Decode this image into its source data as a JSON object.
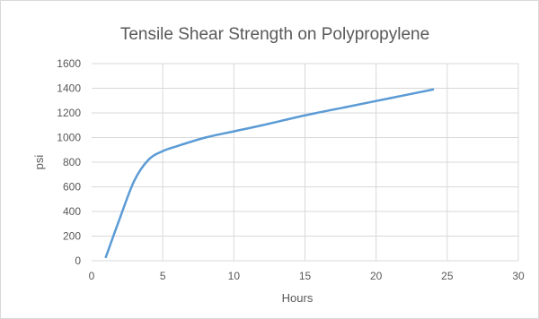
{
  "chart_data": {
    "type": "line",
    "title": "Tensile Shear Strength on Polypropylene",
    "xlabel": "Hours",
    "ylabel": "psi",
    "xlim": [
      0,
      30
    ],
    "ylim": [
      0,
      1600
    ],
    "xticks": [
      0,
      5,
      10,
      15,
      20,
      25,
      30
    ],
    "yticks": [
      0,
      200,
      400,
      600,
      800,
      1000,
      1200,
      1400,
      1600
    ],
    "grid": true,
    "legend": "none",
    "series_color": "#5b9bd5",
    "series": [
      {
        "x": [
          1,
          2,
          3,
          4,
          5,
          6,
          8,
          10,
          12,
          15,
          18,
          21,
          24
        ],
        "values": [
          30,
          350,
          650,
          820,
          890,
          930,
          1000,
          1050,
          1100,
          1180,
          1250,
          1320,
          1390
        ]
      }
    ]
  }
}
